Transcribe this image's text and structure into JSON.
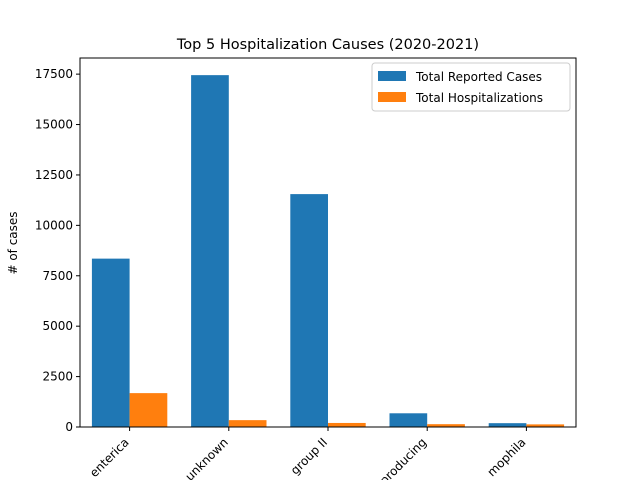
{
  "chart_data": {
    "type": "bar",
    "title": "Top 5 Hospitalization Causes (2020-2021)",
    "xlabel": "",
    "ylabel": "# of cases",
    "categories": [
      "enterica",
      "unknown",
      "group II",
      "producing",
      "mophila"
    ],
    "series": [
      {
        "name": "Total Reported Cases",
        "color": "#1f77b4",
        "values": [
          8350,
          17450,
          11550,
          680,
          190
        ]
      },
      {
        "name": "Total Hospitalizations",
        "color": "#ff7f0e",
        "values": [
          1680,
          340,
          200,
          140,
          130
        ]
      }
    ],
    "ylim": [
      0,
      18300
    ],
    "yticks": [
      0,
      2500,
      5000,
      7500,
      10000,
      12500,
      15000,
      17500
    ],
    "ytick_labels": [
      "0",
      "2500",
      "5000",
      "7500",
      "10000",
      "12500",
      "15000",
      "17500"
    ],
    "grid": false,
    "legend_position": "top-right"
  }
}
